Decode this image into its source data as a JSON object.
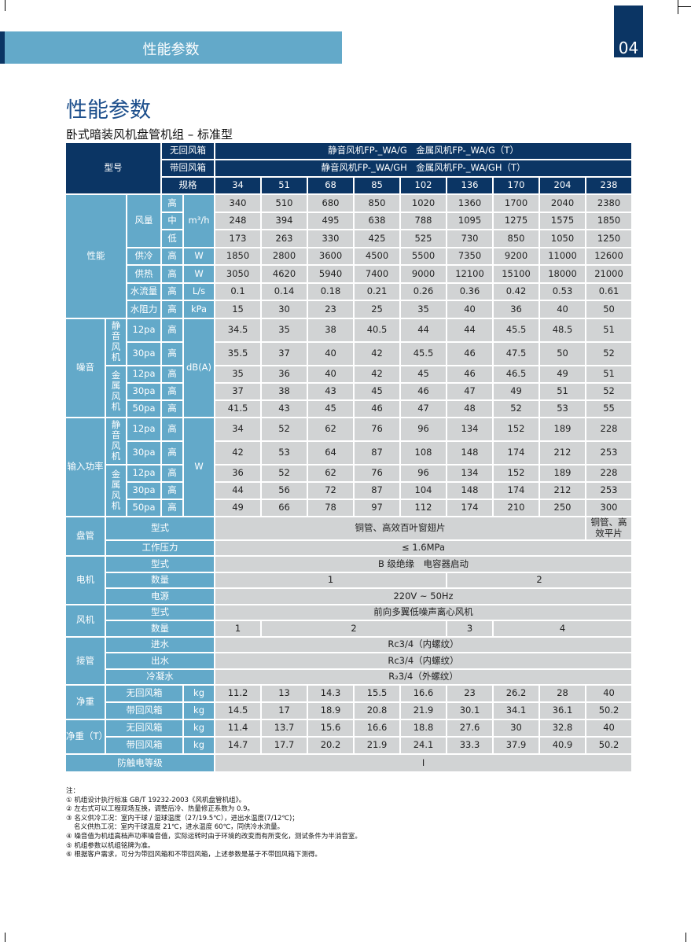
{
  "header": {
    "section_title": "性能参数",
    "page_number": "04"
  },
  "title": "性能参数",
  "subtitle": "卧式暗装风机盘管机组 – 标准型",
  "table": {
    "model_label": "型号",
    "no_return_label": "无回风箱",
    "with_return_label": "带回风箱",
    "model_no_return": "静音风机FP-_WA/G　金属风机FP-_WA/G（T）",
    "model_with_return": "静音风机FP-_WA/GH　金属风机FP-_WA/GH（T）",
    "spec_label": "规格",
    "specs": [
      "34",
      "51",
      "68",
      "85",
      "102",
      "136",
      "170",
      "204",
      "238"
    ],
    "performance": {
      "label": "性能",
      "airflow_label": "风量",
      "airflow_unit": "m³/h",
      "airflow_rows": [
        {
          "level": "高",
          "values": [
            "340",
            "510",
            "680",
            "850",
            "1020",
            "1360",
            "1700",
            "2040",
            "2380"
          ]
        },
        {
          "level": "中",
          "values": [
            "248",
            "394",
            "495",
            "638",
            "788",
            "1095",
            "1275",
            "1575",
            "1850"
          ]
        },
        {
          "level": "低",
          "values": [
            "173",
            "263",
            "330",
            "425",
            "525",
            "730",
            "850",
            "1050",
            "1250"
          ]
        }
      ],
      "other_rows": [
        {
          "label": "供冷",
          "level": "高",
          "unit": "W",
          "values": [
            "1850",
            "2800",
            "3600",
            "4500",
            "5500",
            "7350",
            "9200",
            "11000",
            "12600"
          ]
        },
        {
          "label": "供热",
          "level": "高",
          "unit": "W",
          "values": [
            "3050",
            "4620",
            "5940",
            "7400",
            "9000",
            "12100",
            "15100",
            "18000",
            "21000"
          ]
        },
        {
          "label": "水流量",
          "level": "高",
          "unit": "L/s",
          "values": [
            "0.1",
            "0.14",
            "0.18",
            "0.21",
            "0.26",
            "0.36",
            "0.42",
            "0.53",
            "0.61"
          ]
        },
        {
          "label": "水阻力",
          "level": "高",
          "unit": "kPa",
          "values": [
            "15",
            "30",
            "23",
            "25",
            "35",
            "40",
            "36",
            "40",
            "50"
          ]
        }
      ]
    },
    "noise": {
      "label": "噪音",
      "unit": "dB(A)",
      "quiet_fan": "静音风机",
      "metal_fan": "金属风机",
      "rows": [
        {
          "pressure": "12pa",
          "level": "高",
          "values": [
            "34.5",
            "35",
            "38",
            "40.5",
            "44",
            "44",
            "45.5",
            "48.5",
            "51"
          ]
        },
        {
          "pressure": "30pa",
          "level": "高",
          "values": [
            "35.5",
            "37",
            "40",
            "42",
            "45.5",
            "46",
            "47.5",
            "50",
            "52"
          ]
        },
        {
          "pressure": "12pa",
          "level": "高",
          "values": [
            "35",
            "36",
            "40",
            "42",
            "45",
            "46",
            "46.5",
            "49",
            "51"
          ]
        },
        {
          "pressure": "30pa",
          "level": "高",
          "values": [
            "37",
            "38",
            "43",
            "45",
            "46",
            "47",
            "49",
            "51",
            "52"
          ]
        },
        {
          "pressure": "50pa",
          "level": "高",
          "values": [
            "41.5",
            "43",
            "45",
            "46",
            "47",
            "48",
            "52",
            "53",
            "55"
          ]
        }
      ]
    },
    "power": {
      "label": "输入功率",
      "unit": "W",
      "quiet_fan": "静音风机",
      "metal_fan": "金属风机",
      "rows": [
        {
          "pressure": "12pa",
          "level": "高",
          "values": [
            "34",
            "52",
            "62",
            "76",
            "96",
            "134",
            "152",
            "189",
            "228"
          ]
        },
        {
          "pressure": "30pa",
          "level": "高",
          "values": [
            "42",
            "53",
            "64",
            "87",
            "108",
            "148",
            "174",
            "212",
            "253"
          ]
        },
        {
          "pressure": "12pa",
          "level": "高",
          "values": [
            "36",
            "52",
            "62",
            "76",
            "96",
            "134",
            "152",
            "189",
            "228"
          ]
        },
        {
          "pressure": "30pa",
          "level": "高",
          "values": [
            "44",
            "56",
            "72",
            "87",
            "104",
            "148",
            "174",
            "212",
            "253"
          ]
        },
        {
          "pressure": "50pa",
          "level": "高",
          "values": [
            "49",
            "66",
            "78",
            "97",
            "112",
            "174",
            "210",
            "250",
            "300"
          ]
        }
      ]
    },
    "coil": {
      "label": "盘管",
      "type_label": "型式",
      "type_value": "铜管、高效百叶窗翅片",
      "type_value_238": "铜管、高效平片",
      "pressure_label": "工作压力",
      "pressure_value": "≤ 1.6MPa"
    },
    "motor": {
      "label": "电机",
      "type_label": "型式",
      "type_value": "B 级绝缘　电容器启动",
      "qty_label": "数量",
      "qty_values": [
        "1",
        "2"
      ],
      "power_label": "电源",
      "power_value": "220V ~ 50Hz"
    },
    "fan": {
      "label": "风机",
      "type_label": "型式",
      "type_value": "前向多翼低噪声离心风机",
      "qty_label": "数量",
      "qty_values": [
        "1",
        "2",
        "3",
        "4"
      ]
    },
    "piping": {
      "label": "接管",
      "rows": [
        {
          "label": "进水",
          "value": "Rc3/4（内螺纹）"
        },
        {
          "label": "出水",
          "value": "Rc3/4（内螺纹）"
        },
        {
          "label": "冷凝水",
          "value": "R₂3/4（外螺纹）"
        }
      ]
    },
    "weight": {
      "label": "净重",
      "unit": "kg",
      "rows": [
        {
          "label": "无回风箱",
          "values": [
            "11.2",
            "13",
            "14.3",
            "15.5",
            "16.6",
            "23",
            "26.2",
            "28",
            "40"
          ]
        },
        {
          "label": "带回风箱",
          "values": [
            "14.5",
            "17",
            "18.9",
            "20.8",
            "21.9",
            "30.1",
            "34.1",
            "36.1",
            "50.2"
          ]
        }
      ]
    },
    "weight_t": {
      "label": "净重（T）",
      "unit": "kg",
      "rows": [
        {
          "label": "无回风箱",
          "values": [
            "11.4",
            "13.7",
            "15.6",
            "16.6",
            "18.8",
            "27.6",
            "30",
            "32.8",
            "40"
          ]
        },
        {
          "label": "带回风箱",
          "values": [
            "14.7",
            "17.7",
            "20.2",
            "21.9",
            "24.1",
            "33.3",
            "37.9",
            "40.9",
            "50.2"
          ]
        }
      ]
    },
    "shock": {
      "label": "防触电等级",
      "value": "I"
    }
  },
  "notes": {
    "heading": "注：",
    "items": [
      "① 机组设计执行标准 GB/T 19232-2003《风机盘管机组》。",
      "② 左右式可以工程现场互换，调整后冷、热量修正系数为 0.9。",
      "③ 名义供冷工况：室内干球 / 湿球温度（27/19.5℃），进出水温度(7/12℃)；",
      "名义供热工况：室内干球温度 21℃，进水温度 60℃，同供冷水流量。",
      "④ 噪音值为机组高档声功率噪音值，实际运转时由于环境的改变而有所变化，测试条件为半消音室。",
      "⑤ 机组参数以机组铭牌为准。",
      "⑥ 根据客户需求，可分为带回风箱和不带回风箱，上述参数是基于不带回风箱下测得。"
    ]
  },
  "colors": {
    "navy": "#0b3564",
    "teal": "#63a9c9",
    "cell_gray": "#d1d3d4",
    "title_blue": "#1d4f8c"
  }
}
